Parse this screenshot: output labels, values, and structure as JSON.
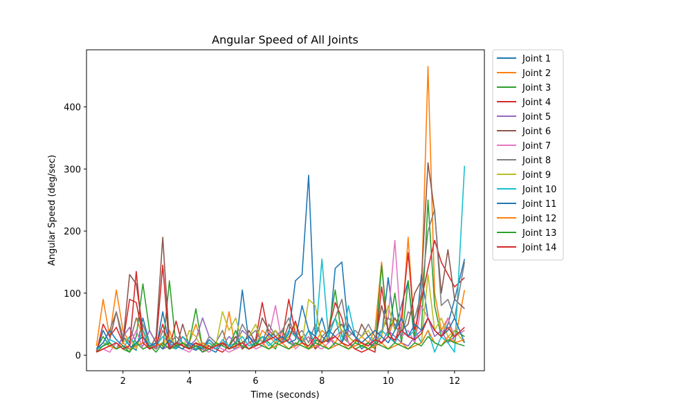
{
  "chart_data": {
    "type": "line",
    "title": "Angular Speed of All Joints",
    "xlabel": "Time (seconds)",
    "ylabel": "Angular Speed (deg/sec)",
    "xlim": [
      0.9,
      12.9
    ],
    "ylim": [
      -25,
      492
    ],
    "xticks": [
      2,
      4,
      6,
      8,
      10,
      12
    ],
    "yticks": [
      0,
      100,
      200,
      300,
      400
    ],
    "grid": false,
    "legend_position": "outside-top-right",
    "x": [
      1.2,
      1.4,
      1.6,
      1.8,
      2.0,
      2.2,
      2.4,
      2.6,
      2.8,
      3.0,
      3.2,
      3.4,
      3.6,
      3.8,
      4.0,
      4.2,
      4.4,
      4.6,
      4.8,
      5.0,
      5.2,
      5.4,
      5.6,
      5.8,
      6.0,
      6.2,
      6.4,
      6.6,
      6.8,
      7.0,
      7.2,
      7.4,
      7.6,
      7.8,
      8.0,
      8.2,
      8.4,
      8.6,
      8.8,
      9.0,
      9.2,
      9.4,
      9.6,
      9.8,
      10.0,
      10.2,
      10.4,
      10.6,
      10.8,
      11.0,
      11.2,
      11.4,
      11.6,
      11.8,
      12.0,
      12.3
    ],
    "series": [
      {
        "name": "Joint 1",
        "color": "#1f77b4",
        "values": [
          5,
          40,
          20,
          10,
          30,
          15,
          8,
          60,
          20,
          10,
          70,
          15,
          10,
          20,
          12,
          8,
          15,
          10,
          5,
          20,
          15,
          10,
          105,
          20,
          15,
          30,
          25,
          40,
          20,
          35,
          120,
          130,
          290,
          30,
          60,
          20,
          140,
          150,
          40,
          30,
          10,
          20,
          15,
          30,
          125,
          40,
          80,
          120,
          20,
          130,
          60,
          40,
          30,
          50,
          90,
          155
        ]
      },
      {
        "name": "Joint 2",
        "color": "#ff7f0e",
        "values": [
          15,
          90,
          30,
          105,
          40,
          20,
          60,
          30,
          10,
          20,
          15,
          40,
          10,
          30,
          20,
          50,
          15,
          10,
          20,
          15,
          70,
          10,
          20,
          30,
          15,
          40,
          30,
          20,
          40,
          20,
          15,
          30,
          10,
          20,
          40,
          30,
          20,
          40,
          30,
          20,
          30,
          20,
          40,
          150,
          30,
          60,
          40,
          190,
          30,
          100,
          465,
          100,
          40,
          60,
          20,
          105
        ]
      },
      {
        "name": "Joint 3",
        "color": "#2ca02c",
        "values": [
          10,
          30,
          15,
          20,
          10,
          5,
          30,
          115,
          40,
          20,
          10,
          120,
          15,
          10,
          20,
          75,
          10,
          15,
          10,
          20,
          15,
          40,
          10,
          20,
          15,
          30,
          20,
          10,
          40,
          20,
          15,
          30,
          10,
          25,
          20,
          40,
          105,
          30,
          20,
          10,
          15,
          20,
          10,
          145,
          30,
          100,
          20,
          120,
          30,
          40,
          250,
          80,
          30,
          20,
          40,
          30
        ]
      },
      {
        "name": "Joint 4",
        "color": "#d62728",
        "values": [
          5,
          50,
          30,
          45,
          20,
          90,
          85,
          30,
          10,
          20,
          145,
          10,
          55,
          15,
          10,
          20,
          5,
          15,
          10,
          5,
          15,
          30,
          10,
          20,
          25,
          85,
          30,
          40,
          25,
          90,
          35,
          20,
          30,
          10,
          20,
          40,
          85,
          60,
          20,
          10,
          5,
          10,
          5,
          110,
          40,
          20,
          60,
          165,
          40,
          90,
          140,
          185,
          150,
          130,
          110,
          125
        ]
      },
      {
        "name": "Joint 5",
        "color": "#9467bd",
        "values": [
          10,
          15,
          20,
          10,
          30,
          45,
          20,
          15,
          40,
          20,
          10,
          15,
          20,
          30,
          15,
          25,
          60,
          30,
          20,
          15,
          30,
          20,
          40,
          30,
          20,
          15,
          30,
          40,
          20,
          30,
          15,
          20,
          40,
          30,
          20,
          30,
          15,
          20,
          40,
          30,
          20,
          15,
          30,
          20,
          40,
          30,
          20,
          15,
          30,
          40,
          60,
          30,
          40,
          20,
          30,
          40
        ]
      },
      {
        "name": "Joint 6",
        "color": "#8c564b",
        "values": [
          10,
          15,
          25,
          70,
          20,
          130,
          115,
          40,
          10,
          30,
          190,
          20,
          10,
          50,
          15,
          10,
          20,
          15,
          10,
          20,
          15,
          30,
          10,
          40,
          20,
          60,
          40,
          30,
          20,
          50,
          30,
          20,
          40,
          10,
          30,
          20,
          40,
          50,
          30,
          20,
          50,
          30,
          20,
          80,
          40,
          60,
          40,
          50,
          100,
          120,
          310,
          230,
          100,
          170,
          90,
          75
        ]
      },
      {
        "name": "Joint 7",
        "color": "#e377c2",
        "values": [
          5,
          10,
          5,
          20,
          10,
          15,
          40,
          10,
          15,
          10,
          20,
          10,
          15,
          10,
          5,
          15,
          10,
          5,
          15,
          10,
          5,
          10,
          15,
          20,
          10,
          15,
          30,
          80,
          20,
          30,
          10,
          20,
          30,
          15,
          10,
          20,
          30,
          40,
          20,
          15,
          20,
          30,
          15,
          40,
          60,
          185,
          30,
          40,
          20,
          80,
          60,
          40,
          30,
          60,
          30,
          40
        ]
      },
      {
        "name": "Joint 8",
        "color": "#7f7f7f",
        "values": [
          10,
          20,
          40,
          70,
          30,
          20,
          60,
          50,
          20,
          10,
          40,
          20,
          30,
          20,
          15,
          20,
          10,
          30,
          20,
          40,
          10,
          20,
          50,
          30,
          40,
          20,
          50,
          30,
          40,
          60,
          30,
          40,
          20,
          50,
          30,
          40,
          60,
          90,
          30,
          40,
          30,
          50,
          30,
          40,
          60,
          50,
          30,
          70,
          60,
          100,
          200,
          235,
          80,
          90,
          60,
          150
        ]
      },
      {
        "name": "Joint 9",
        "color": "#bcbd22",
        "values": [
          10,
          20,
          15,
          10,
          20,
          30,
          10,
          40,
          15,
          20,
          10,
          30,
          15,
          10,
          40,
          30,
          10,
          20,
          15,
          70,
          40,
          60,
          20,
          30,
          50,
          20,
          30,
          40,
          20,
          30,
          50,
          20,
          90,
          80,
          20,
          30,
          60,
          40,
          30,
          20,
          30,
          40,
          20,
          30,
          80,
          40,
          60,
          30,
          40,
          20,
          130,
          40,
          60,
          30,
          40,
          20
        ]
      },
      {
        "name": "Joint 10",
        "color": "#17becf",
        "values": [
          10,
          15,
          25,
          20,
          10,
          30,
          15,
          40,
          20,
          15,
          30,
          20,
          10,
          30,
          20,
          10,
          15,
          20,
          10,
          25,
          15,
          20,
          30,
          15,
          20,
          30,
          15,
          25,
          20,
          40,
          30,
          20,
          40,
          20,
          155,
          30,
          60,
          20,
          80,
          30,
          20,
          30,
          20,
          40,
          30,
          20,
          40,
          30,
          40,
          20,
          40,
          5,
          30,
          20,
          5,
          305
        ]
      },
      {
        "name": "Joint 11",
        "color": "#1f77b4",
        "values": [
          10,
          20,
          40,
          25,
          15,
          10,
          20,
          30,
          15,
          20,
          10,
          25,
          15,
          10,
          20,
          15,
          10,
          25,
          15,
          20,
          10,
          15,
          20,
          30,
          15,
          20,
          35,
          25,
          30,
          20,
          25,
          80,
          40,
          30,
          20,
          40,
          30,
          20,
          50,
          30,
          20,
          30,
          40,
          30,
          20,
          40,
          60,
          30,
          50,
          40,
          60,
          40,
          30,
          40,
          60,
          20
        ]
      },
      {
        "name": "Joint 12",
        "color": "#ff7f0e",
        "values": [
          5,
          10,
          15,
          10,
          20,
          10,
          15,
          20,
          10,
          15,
          20,
          10,
          15,
          20,
          10,
          15,
          20,
          10,
          15,
          20,
          10,
          15,
          20,
          10,
          15,
          20,
          10,
          15,
          20,
          10,
          15,
          20,
          10,
          15,
          20,
          10,
          15,
          20,
          10,
          15,
          20,
          10,
          15,
          20,
          10,
          15,
          20,
          10,
          15,
          20,
          40,
          20,
          15,
          30,
          20,
          25
        ]
      },
      {
        "name": "Joint 13",
        "color": "#2ca02c",
        "values": [
          5,
          15,
          20,
          10,
          15,
          5,
          20,
          10,
          15,
          5,
          20,
          10,
          15,
          20,
          10,
          15,
          5,
          10,
          20,
          15,
          10,
          20,
          15,
          10,
          20,
          15,
          10,
          20,
          15,
          10,
          20,
          15,
          10,
          20,
          15,
          10,
          20,
          15,
          10,
          20,
          15,
          10,
          20,
          15,
          10,
          20,
          15,
          10,
          20,
          15,
          30,
          20,
          15,
          25,
          20,
          15
        ]
      },
      {
        "name": "Joint 14",
        "color": "#d62728",
        "values": [
          5,
          10,
          15,
          20,
          10,
          15,
          135,
          20,
          10,
          15,
          50,
          10,
          20,
          15,
          10,
          20,
          15,
          10,
          15,
          20,
          10,
          15,
          20,
          10,
          15,
          20,
          25,
          30,
          20,
          25,
          55,
          20,
          15,
          30,
          20,
          25,
          30,
          20,
          15,
          25,
          20,
          15,
          25,
          20,
          30,
          25,
          40,
          30,
          25,
          35,
          60,
          40,
          30,
          45,
          30,
          45
        ]
      }
    ]
  }
}
